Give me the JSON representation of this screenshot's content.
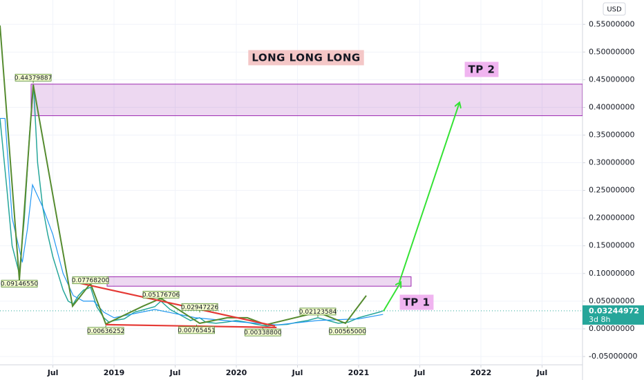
{
  "chart_data": {
    "type": "line",
    "currency": "USD",
    "xlim": [
      0.81,
      57.97
    ],
    "xticks": [
      {
        "value": 6,
        "label": "Jul"
      },
      {
        "value": 12,
        "label": "2019"
      },
      {
        "value": 18,
        "label": "Jul"
      },
      {
        "value": 24,
        "label": "2020"
      },
      {
        "value": 30,
        "label": "Jul"
      },
      {
        "value": 36,
        "label": "2021"
      },
      {
        "value": 42,
        "label": "Jul"
      },
      {
        "value": 48,
        "label": "2022"
      },
      {
        "value": 54,
        "label": "Jul"
      }
    ],
    "ylim": [
      -0.065,
      0.594
    ],
    "yticks": [
      {
        "value": -0.05,
        "label": "-0.05000000"
      },
      {
        "value": 0,
        "label": "0.00000000"
      },
      {
        "value": 0.05,
        "label": "0.05000000"
      },
      {
        "value": 0.1,
        "label": "0.10000000"
      },
      {
        "value": 0.15,
        "label": "0.15000000"
      },
      {
        "value": 0.2,
        "label": "0.20000000"
      },
      {
        "value": 0.25,
        "label": "0.25000000"
      },
      {
        "value": 0.3,
        "label": "0.30000000"
      },
      {
        "value": 0.35,
        "label": "0.35000000"
      },
      {
        "value": 0.4,
        "label": "0.40000000"
      },
      {
        "value": 0.45,
        "label": "0.45000000"
      },
      {
        "value": 0.5,
        "label": "0.50000000"
      },
      {
        "value": 0.55,
        "label": "0.55000000"
      }
    ],
    "grid": true,
    "series": [
      {
        "color": "#26a69a",
        "x": [
          0.81,
          1.5,
          2,
          2.7,
          3.2,
          3.7,
          4.1,
          4.5,
          5,
          5.5,
          6,
          6.5,
          7,
          7.5,
          8,
          8.5,
          9,
          9.7,
          10.3,
          11,
          11.5,
          12,
          13,
          14,
          15,
          16,
          16.6,
          17.5,
          18.5,
          19.5,
          20.4,
          21,
          22,
          23,
          24,
          25,
          26,
          27,
          28,
          29,
          30,
          31,
          32,
          33,
          34,
          35,
          36,
          37,
          38,
          38.4
        ],
        "values": [
          0.38,
          0.25,
          0.15,
          0.1,
          0.2,
          0.35,
          0.44,
          0.3,
          0.22,
          0.17,
          0.13,
          0.1,
          0.07,
          0.05,
          0.045,
          0.06,
          0.07,
          0.075,
          0.04,
          0.02,
          0.012,
          0.015,
          0.018,
          0.03,
          0.035,
          0.04,
          0.05,
          0.035,
          0.025,
          0.015,
          0.02,
          0.012,
          0.01,
          0.012,
          0.015,
          0.012,
          0.008,
          0.005,
          0.007,
          0.008,
          0.012,
          0.015,
          0.02,
          0.015,
          0.01,
          0.012,
          0.02,
          0.025,
          0.03,
          0.03244972
        ]
      },
      {
        "color": "#2196f3",
        "x": [
          0.81,
          1.3,
          2,
          3,
          3.5,
          4,
          4.5,
          5,
          6,
          7,
          8,
          9,
          10,
          11,
          12,
          16,
          20,
          24,
          28,
          32,
          36,
          38.4
        ],
        "values": [
          0.38,
          0.38,
          0.2,
          0.12,
          0.18,
          0.26,
          0.24,
          0.22,
          0.17,
          0.1,
          0.06,
          0.05,
          0.05,
          0.03,
          0.02,
          0.035,
          0.02,
          0.013,
          0.007,
          0.015,
          0.018,
          0.026
        ]
      }
    ],
    "zones": [
      {
        "x": [
          3.86,
          57.97
        ],
        "range": [
          0.385,
          0.442
        ],
        "color": "#9c27b0"
      },
      {
        "x": [
          11.32,
          41.15
        ],
        "range": [
          0.077,
          0.094
        ],
        "color": "#9c27b0"
      }
    ],
    "zigzag": {
      "color": "#558b2f",
      "x": [
        0.81,
        2.71,
        4.07,
        7.93,
        9.69,
        11.19,
        14.85,
        16.61,
        20.41,
        23.12,
        25.08,
        26.92,
        32.0,
        34.71,
        36.75
      ],
      "values": [
        0.548,
        0.0882,
        0.441,
        0.041,
        0.082,
        0.0087,
        0.041,
        0.055,
        0.01,
        0.02,
        0.02,
        0.0075,
        0.03,
        0.01,
        0.06
      ]
    },
    "trend_lines": [
      {
        "color": "#e53935",
        "x": [
          8.14,
          27.8
        ],
        "values": [
          0.0845,
          0.005
        ]
      },
      {
        "color": "#e53935",
        "x": [
          11.19,
          27.95
        ],
        "values": [
          0.0075,
          0.0025
        ]
      }
    ],
    "arrows": [
      {
        "color": "#34e234",
        "x": [
          38.44,
          40.14
        ],
        "values": [
          0.032,
          0.0845
        ]
      },
      {
        "color": "#34e234",
        "x": [
          40.0,
          45.9
        ],
        "values": [
          0.0845,
          0.409
        ]
      }
    ],
    "pivots": [
      {
        "x": 4.07,
        "value": 0.44379887,
        "kind": "high"
      },
      {
        "x": 2.71,
        "value": 0.0914655,
        "label": "0.09146550",
        "kind": "low"
      },
      {
        "x": 9.69,
        "value": 0.077682,
        "label": "0.07768200",
        "kind": "high"
      },
      {
        "x": 16.61,
        "value": 0.05176706,
        "kind": "high"
      },
      {
        "x": 20.41,
        "value": 0.02947226,
        "kind": "high"
      },
      {
        "x": 11.19,
        "value": 0.00636252,
        "kind": "low"
      },
      {
        "x": 20.1,
        "value": 0.00765451,
        "kind": "low"
      },
      {
        "x": 26.6,
        "value": 0.003388,
        "label": "0.00338800",
        "kind": "low"
      },
      {
        "x": 32.0,
        "value": 0.02123584,
        "kind": "high"
      },
      {
        "x": 34.9,
        "value": 0.00565,
        "label": "0.00565000",
        "kind": "low"
      }
    ],
    "texts": [
      "LONG LONG LONG",
      "TP 2",
      "TP 1"
    ],
    "last_price": {
      "value": 0.03244972,
      "countdown": "3d 8h",
      "color": "#26a69a"
    }
  }
}
